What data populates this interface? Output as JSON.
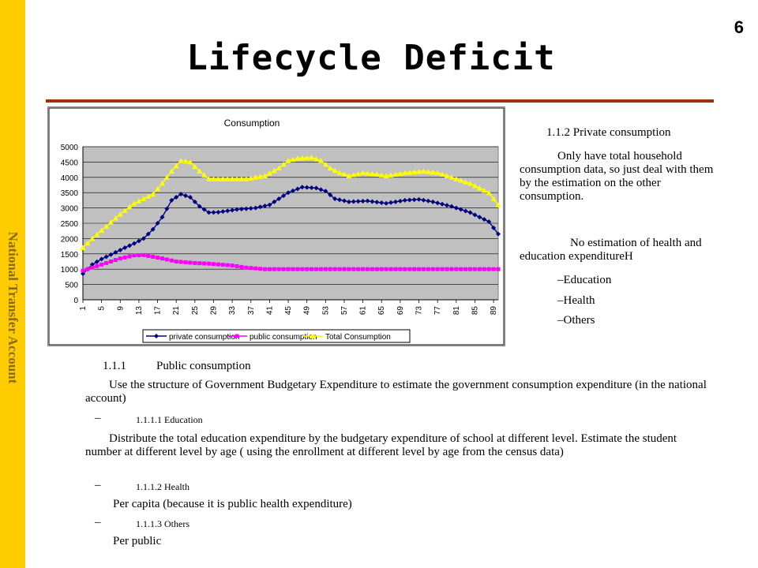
{
  "page_number": "6",
  "sidebar_label": "National Transfer Account",
  "slide_title": "Lifecycle Deficit",
  "private_section": {
    "heading": "1.1.2 Private consumption",
    "para1": "Only have total household consumption data, so just deal with them by the estimation on the other consumption.",
    "para2": "No estimation of health and education expenditureH",
    "items": [
      "–Education",
      "–Health",
      "–Others"
    ]
  },
  "public_section": {
    "heading_number": "1.1.1",
    "heading_text": "Public consumption",
    "para1": "Use the structure of Government Budgetary Expenditure to estimate the government consumption expenditure (in the national account)",
    "dash": "–",
    "sub1": "1.1.1.1 Education",
    "para2": "Distribute the total education expenditure by the budgetary expenditure of school at different level. Estimate the student number at different level by age ( using the enrollment at different level by age from the census data)",
    "sub2": "1.1.1.2 Health",
    "para3": "Per capita (because it is public health expenditure)",
    "sub3": "1.1.1.3 Others",
    "para4": "Per public"
  },
  "chart_data": {
    "type": "line",
    "title": "Consumption",
    "ylim": [
      0,
      5000
    ],
    "y_ticks": [
      0,
      500,
      1000,
      1500,
      2000,
      2500,
      3000,
      3500,
      4000,
      4500,
      5000
    ],
    "x_ticks": [
      1,
      5,
      9,
      13,
      17,
      21,
      25,
      29,
      33,
      37,
      41,
      45,
      49,
      53,
      57,
      61,
      65,
      69,
      73,
      77,
      81,
      85,
      89
    ],
    "x_range": [
      1,
      90
    ],
    "plot_background": "#c0c0c0",
    "grid": true,
    "legend_position": "bottom",
    "series": [
      {
        "name": "private consumption",
        "color": "#000080",
        "marker": "diamond",
        "keypoints": [
          [
            1,
            850
          ],
          [
            2,
            1000
          ],
          [
            3,
            1150
          ],
          [
            5,
            1330
          ],
          [
            8,
            1550
          ],
          [
            10,
            1700
          ],
          [
            12,
            1840
          ],
          [
            14,
            2000
          ],
          [
            16,
            2300
          ],
          [
            18,
            2700
          ],
          [
            20,
            3250
          ],
          [
            22,
            3450
          ],
          [
            24,
            3350
          ],
          [
            26,
            3050
          ],
          [
            28,
            2850
          ],
          [
            30,
            2860
          ],
          [
            34,
            2950
          ],
          [
            38,
            3000
          ],
          [
            41,
            3100
          ],
          [
            45,
            3500
          ],
          [
            48,
            3680
          ],
          [
            51,
            3650
          ],
          [
            53,
            3550
          ],
          [
            55,
            3300
          ],
          [
            58,
            3200
          ],
          [
            62,
            3230
          ],
          [
            66,
            3150
          ],
          [
            70,
            3250
          ],
          [
            73,
            3280
          ],
          [
            76,
            3200
          ],
          [
            80,
            3050
          ],
          [
            84,
            2850
          ],
          [
            88,
            2550
          ],
          [
            90,
            2150
          ]
        ]
      },
      {
        "name": "public consumption",
        "color": "#ff00ff",
        "marker": "square",
        "keypoints": [
          [
            1,
            950
          ],
          [
            3,
            1050
          ],
          [
            6,
            1200
          ],
          [
            9,
            1350
          ],
          [
            12,
            1450
          ],
          [
            14,
            1460
          ],
          [
            18,
            1350
          ],
          [
            21,
            1250
          ],
          [
            25,
            1200
          ],
          [
            28,
            1180
          ],
          [
            33,
            1120
          ],
          [
            36,
            1050
          ],
          [
            40,
            1000
          ],
          [
            90,
            1000
          ]
        ]
      },
      {
        "name": "Total Consumption",
        "color": "#ffff00",
        "marker": "triangle",
        "keypoints": [
          [
            1,
            1700
          ],
          [
            3,
            2000
          ],
          [
            6,
            2400
          ],
          [
            9,
            2800
          ],
          [
            12,
            3150
          ],
          [
            14,
            3300
          ],
          [
            16,
            3450
          ],
          [
            18,
            3800
          ],
          [
            20,
            4200
          ],
          [
            22,
            4550
          ],
          [
            24,
            4500
          ],
          [
            26,
            4200
          ],
          [
            28,
            3950
          ],
          [
            32,
            3950
          ],
          [
            36,
            3950
          ],
          [
            40,
            4050
          ],
          [
            43,
            4300
          ],
          [
            45,
            4550
          ],
          [
            47,
            4620
          ],
          [
            50,
            4650
          ],
          [
            52,
            4550
          ],
          [
            54,
            4300
          ],
          [
            56,
            4150
          ],
          [
            58,
            4050
          ],
          [
            61,
            4150
          ],
          [
            64,
            4100
          ],
          [
            66,
            4050
          ],
          [
            70,
            4150
          ],
          [
            74,
            4200
          ],
          [
            77,
            4150
          ],
          [
            80,
            4000
          ],
          [
            84,
            3800
          ],
          [
            88,
            3500
          ],
          [
            90,
            3100
          ]
        ]
      }
    ]
  }
}
